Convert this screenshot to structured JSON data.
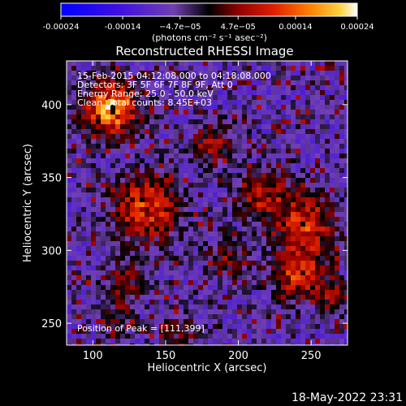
{
  "chart_data": {
    "type": "heatmap",
    "title": "Reconstructed RHESSI Image",
    "xlabel": "Heliocentric X (arcsec)",
    "ylabel": "Heliocentric Y (arcsec)",
    "xlim": [
      82,
      275
    ],
    "ylim": [
      235,
      430
    ],
    "x_ticks": [
      100,
      150,
      200,
      250
    ],
    "y_ticks": [
      250,
      300,
      350,
      400
    ],
    "colorbar": {
      "range": [
        -0.00024,
        0.00024
      ],
      "tick_values": [
        -0.00024,
        -0.00014,
        -4.7e-05,
        4.7e-05,
        0.00014,
        0.00024
      ],
      "tick_labels": [
        "-0.00024",
        "-0.00014",
        "−4.7e−05",
        "4.7e−05",
        "0.00014",
        "0.00024"
      ],
      "unit": "(photons cm⁻² s⁻¹ asec⁻²)",
      "colors": [
        "#0000ff",
        "#3a00e0",
        "#6a20c0",
        "#000000",
        "#8a0000",
        "#d01000",
        "#ff5000",
        "#ffa000",
        "#ffe060",
        "#ffffff"
      ]
    },
    "annotations": [
      "15-Feb-2015 04:12:08.000 to 04:18:08.000",
      "Detectors: 3F 5F 6F 7F 8F 9F, Att 0",
      "Energy Range: 25.0 - 50.0 keV",
      "Clean.  Total counts: 8.45E+03"
    ],
    "peak_label": "Position of Peak = [111,399]",
    "peak": {
      "x": 111,
      "y": 399
    },
    "grid": false
  },
  "footer": {
    "timestamp": "18-May-2022 23:31"
  }
}
